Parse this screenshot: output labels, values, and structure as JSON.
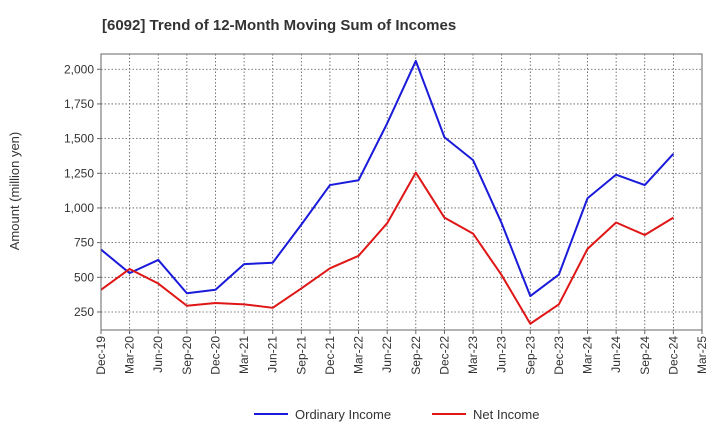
{
  "chart_data": {
    "type": "line",
    "title": "[6092]  Trend of 12-Month Moving Sum of Incomes",
    "xlabel": "",
    "ylabel": "Amount (million yen)",
    "ylim": [
      120,
      2110
    ],
    "yticks": [
      250,
      500,
      750,
      1000,
      1250,
      1500,
      1750,
      2000
    ],
    "ytick_labels": [
      "250",
      "500",
      "750",
      "1,000",
      "1,250",
      "1,500",
      "1,750",
      "2,000"
    ],
    "categories": [
      "Dec-19",
      "Mar-20",
      "Jun-20",
      "Sep-20",
      "Dec-20",
      "Mar-21",
      "Jun-21",
      "Sep-21",
      "Dec-21",
      "Mar-22",
      "Jun-22",
      "Sep-22",
      "Dec-22",
      "Mar-23",
      "Jun-23",
      "Sep-23",
      "Dec-23",
      "Mar-24",
      "Jun-24",
      "Sep-24",
      "Dec-24",
      "Mar-25"
    ],
    "grid": true,
    "legend_position": "bottom-center",
    "series": [
      {
        "name": "Ordinary Income",
        "color": "#1a1adb",
        "values": [
          700,
          530,
          625,
          385,
          410,
          595,
          605,
          880,
          1165,
          1200,
          1610,
          2060,
          1510,
          1345,
          890,
          365,
          520,
          1070,
          1240,
          1165,
          1390,
          null
        ]
      },
      {
        "name": "Net Income",
        "color": "#e01616",
        "values": [
          410,
          560,
          455,
          295,
          315,
          305,
          280,
          420,
          565,
          655,
          890,
          1255,
          930,
          815,
          515,
          165,
          305,
          705,
          895,
          805,
          930,
          null
        ]
      }
    ]
  }
}
